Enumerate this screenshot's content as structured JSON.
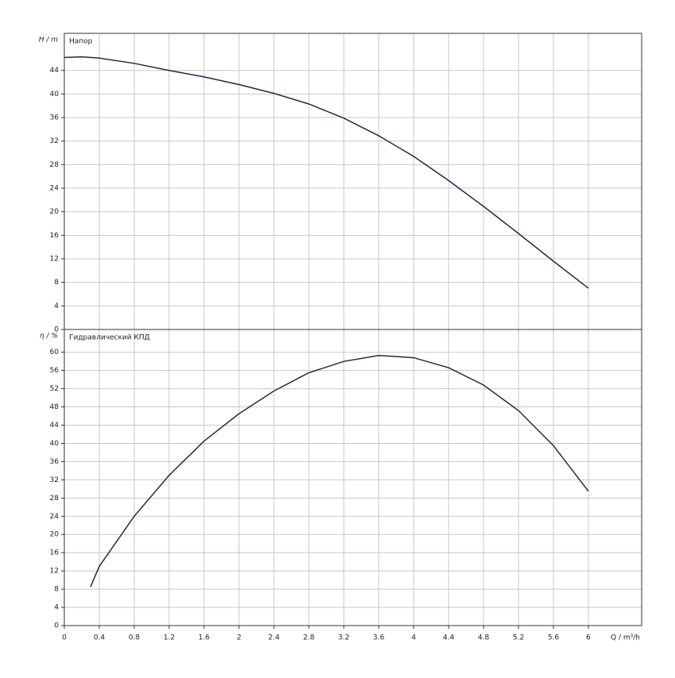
{
  "chart_data": [
    {
      "type": "line",
      "ylabel": "H / m",
      "title": "Напор",
      "x": [
        0,
        0.2,
        0.4,
        0.8,
        1.2,
        1.6,
        2,
        2.4,
        2.8,
        3.2,
        3.6,
        4,
        4.4,
        4.8,
        5.2,
        5.6,
        6
      ],
      "series": [
        {
          "color": "#1f2a44",
          "values": [
            46.2,
            46.3,
            46.1,
            45.2,
            44.0,
            42.9,
            41.6,
            40.1,
            38.3,
            35.9,
            32.9,
            29.4,
            25.3,
            20.9,
            16.3,
            11.6,
            7.0
          ]
        }
      ],
      "xlim": [
        0,
        6.61
      ],
      "xticks": [
        0,
        0.4,
        0.8,
        1.2,
        1.6,
        2,
        2.4,
        2.8,
        3.2,
        3.6,
        4,
        4.4,
        4.8,
        5.2,
        5.6,
        6
      ],
      "ylim": [
        0,
        50.3
      ],
      "yticks": [
        0,
        4,
        8,
        12,
        16,
        20,
        24,
        28,
        32,
        36,
        40,
        44
      ],
      "grid": true
    },
    {
      "type": "line",
      "ylabel": "η / %",
      "title": "Гидравлический КПД",
      "xlabel": "Q / m³/h",
      "x": [
        0.3,
        0.4,
        0.8,
        1.2,
        1.6,
        2,
        2.4,
        2.8,
        3.2,
        3.6,
        4,
        4.4,
        4.8,
        5.2,
        5.6,
        6
      ],
      "series": [
        {
          "color": "#1f2a44",
          "values": [
            8.5,
            13,
            24,
            33,
            40.5,
            46.5,
            51.5,
            55.5,
            58,
            59.3,
            58.8,
            56.6,
            52.8,
            47.2,
            39.5,
            29.5
          ]
        }
      ],
      "xlim": [
        0,
        6.61
      ],
      "xticks": [
        0,
        0.4,
        0.8,
        1.2,
        1.6,
        2,
        2.4,
        2.8,
        3.2,
        3.6,
        4,
        4.4,
        4.8,
        5.2,
        5.6,
        6
      ],
      "ylim": [
        0,
        65
      ],
      "yticks": [
        0,
        4,
        8,
        12,
        16,
        20,
        24,
        28,
        32,
        36,
        40,
        44,
        48,
        52,
        56,
        60
      ],
      "grid": true
    }
  ]
}
